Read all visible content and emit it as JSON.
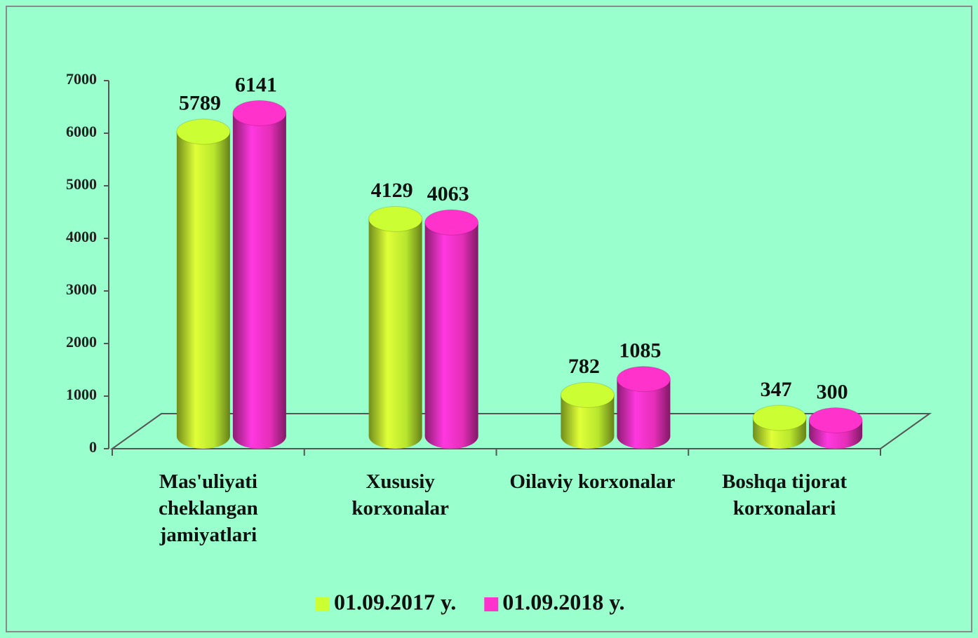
{
  "chart_data": {
    "type": "bar3d",
    "categories": [
      "Mas'uliyati cheklangan jamiyatlari",
      "Xususiy korxonalar",
      "Oilaviy korxonalar",
      "Boshqa tijorat korxonalari"
    ],
    "series": [
      {
        "name": "01.09.2017 y.",
        "color": "#ccff33",
        "values": [
          5789,
          4129,
          782,
          347
        ]
      },
      {
        "name": "01.09.2018 y.",
        "color": "#ff33cc",
        "values": [
          6141,
          4063,
          1085,
          300
        ]
      }
    ],
    "ylim": [
      0,
      7000
    ],
    "yticks": [
      0,
      1000,
      2000,
      3000,
      4000,
      5000,
      6000,
      7000
    ],
    "legend": "bottom"
  }
}
